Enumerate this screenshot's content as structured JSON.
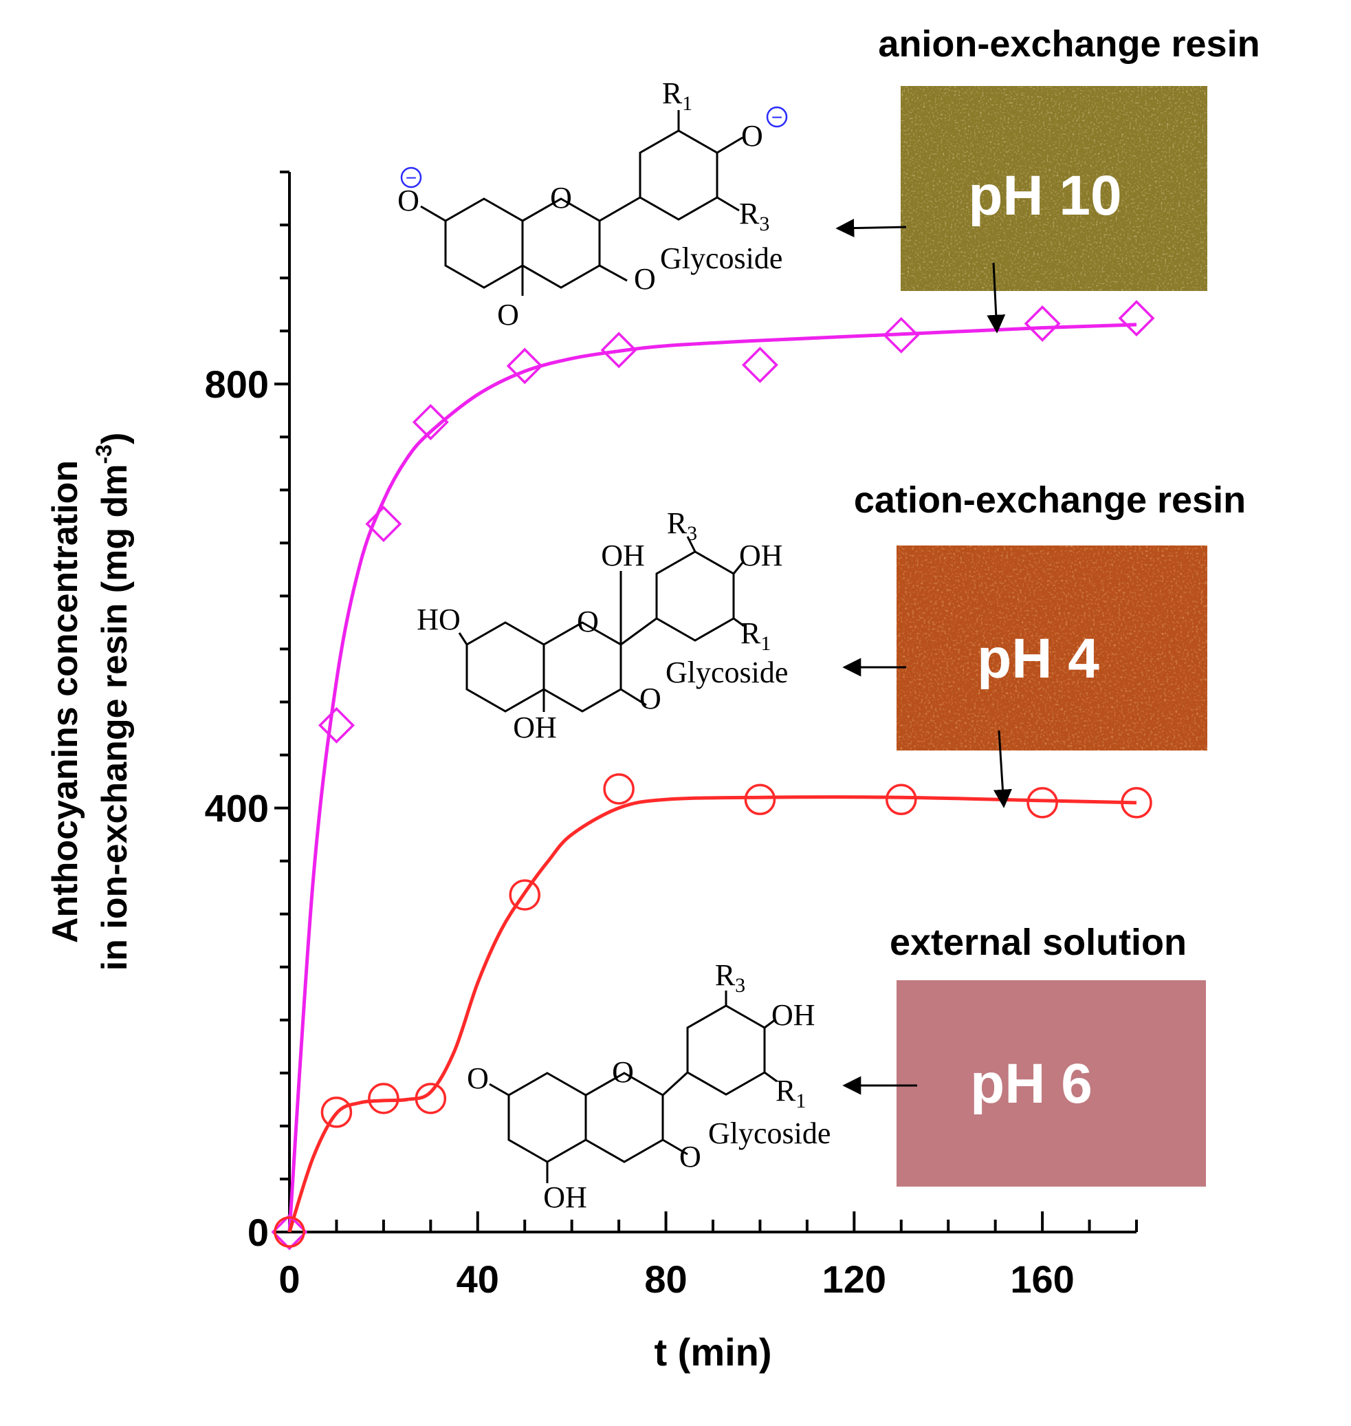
{
  "chart_data": {
    "type": "scatter",
    "xlabel": "t (min)",
    "ylabel_line1": "Anthocyanins concentration",
    "ylabel_line2": "in ion-exchange resin (mg dm",
    "ylabel_sup": "-3",
    "ylabel_close": ")",
    "xlim": [
      0,
      180
    ],
    "ylim": [
      0,
      1000
    ],
    "x_ticks": [
      0,
      40,
      80,
      120,
      160
    ],
    "y_ticks": [
      0,
      400,
      800
    ],
    "x_tick_labels": [
      "0",
      "40",
      "80",
      "120",
      "160"
    ],
    "y_tick_labels": [
      "0",
      "400",
      "800"
    ],
    "grid": false,
    "series": [
      {
        "marker": "diamond",
        "color": "#ee22ee",
        "x": [
          0,
          10,
          20,
          30,
          50,
          70,
          100,
          130,
          160,
          180
        ],
        "y": [
          0,
          478,
          668,
          764,
          817,
          832,
          818,
          846,
          857,
          862
        ],
        "fit_x": [
          0,
          5,
          10,
          15,
          20,
          25,
          30,
          40,
          50,
          60,
          70,
          80,
          100,
          130,
          160,
          180
        ],
        "fit_y": [
          0,
          330,
          520,
          630,
          690,
          730,
          755,
          790,
          812,
          824,
          831,
          836,
          841,
          847,
          853,
          856
        ]
      },
      {
        "marker": "circle",
        "color": "#ff2a2a",
        "x": [
          0,
          10,
          20,
          30,
          50,
          70,
          100,
          130,
          160,
          180
        ],
        "y": [
          0,
          113,
          126,
          126,
          318,
          418,
          408,
          408,
          405,
          405
        ],
        "fit_x": [
          0,
          5,
          10,
          15,
          20,
          25,
          30,
          35,
          40,
          45,
          50,
          55,
          60,
          70,
          80,
          100,
          130,
          160,
          180
        ],
        "fit_y": [
          0,
          70,
          112,
          122,
          124,
          125,
          132,
          170,
          235,
          285,
          320,
          350,
          375,
          400,
          408,
          410,
          410,
          407,
          405
        ]
      }
    ]
  },
  "panels": {
    "anion": {
      "title": "anion-exchange resin",
      "ph": "pH 10",
      "swatch_color": "#8a7a2a",
      "structure": {
        "r_top": "R",
        "r_top_sub": "1",
        "r_side": "R",
        "r_side_sub": "3",
        "o_phenolate": "O",
        "o_left": "O",
        "ring_o": "O",
        "carbonyl_o": "O",
        "glyco_o": "O",
        "glycoside": "Glycoside",
        "charge": "−"
      }
    },
    "cation": {
      "title": "cation-exchange resin",
      "ph": "pH 4",
      "swatch_color": "#b8501c",
      "structure": {
        "r_top": "R",
        "r_top_sub": "3",
        "r_side": "R",
        "r_side_sub": "1",
        "oh_top": "OH",
        "oh_c2": "OH",
        "ho_left": "HO",
        "ring_o": "O",
        "oh_bottom": "OH",
        "glyco_o": "O",
        "glycoside": "Glycoside"
      }
    },
    "external": {
      "title": "external solution",
      "ph": "pH 6",
      "swatch_color": "#c07a80",
      "structure": {
        "r_top": "R",
        "r_top_sub": "3",
        "r_side": "R",
        "r_side_sub": "1",
        "oh_top": "OH",
        "o_left": "O",
        "ring_o": "O",
        "oh_bottom": "OH",
        "glyco_o": "O",
        "glycoside": "Glycoside"
      }
    }
  }
}
